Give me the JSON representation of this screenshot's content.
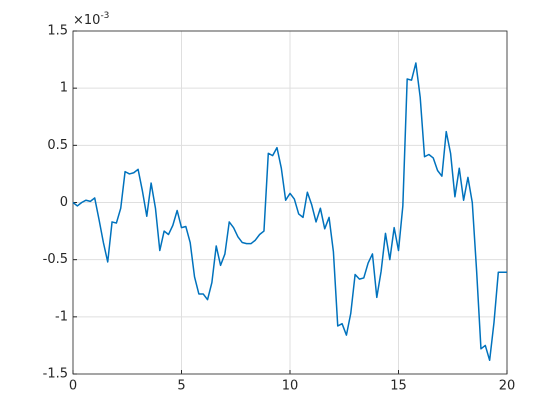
{
  "chart_data": {
    "type": "line",
    "y_exponent": {
      "base": "×10",
      "power": "-3"
    },
    "x": [
      0,
      0.2,
      0.4,
      0.6,
      0.8,
      1,
      1.2,
      1.4,
      1.6,
      1.8,
      2,
      2.2,
      2.4,
      2.6,
      2.8,
      3,
      3.2,
      3.4,
      3.6,
      3.8,
      4,
      4.2,
      4.4,
      4.6,
      4.8,
      5,
      5.2,
      5.4,
      5.6,
      5.8,
      6,
      6.2,
      6.4,
      6.6,
      6.8,
      7,
      7.2,
      7.4,
      7.6,
      7.8,
      8,
      8.2,
      8.4,
      8.6,
      8.8,
      9,
      9.2,
      9.4,
      9.6,
      9.8,
      10,
      10.2,
      10.4,
      10.6,
      10.8,
      11,
      11.2,
      11.4,
      11.6,
      11.8,
      12,
      12.2,
      12.4,
      12.6,
      12.8,
      13,
      13.2,
      13.4,
      13.6,
      13.8,
      14,
      14.2,
      14.4,
      14.6,
      14.8,
      15,
      15.2,
      15.4,
      15.6,
      15.8,
      16,
      16.2,
      16.4,
      16.6,
      16.8,
      17,
      17.2,
      17.4,
      17.6,
      17.8,
      18,
      18.2,
      18.4,
      18.6,
      18.8,
      19,
      19.2,
      19.4,
      19.6,
      19.8,
      20
    ],
    "series": [
      {
        "color": "#0072bd",
        "values": [
          0,
          -0.03,
          0,
          0.02,
          0.01,
          0.04,
          -0.15,
          -0.35,
          -0.52,
          -0.17,
          -0.18,
          -0.05,
          0.27,
          0.25,
          0.26,
          0.29,
          0.1,
          -0.12,
          0.17,
          -0.05,
          -0.42,
          -0.25,
          -0.28,
          -0.2,
          -0.07,
          -0.22,
          -0.21,
          -0.35,
          -0.65,
          -0.8,
          -0.8,
          -0.85,
          -0.7,
          -0.38,
          -0.55,
          -0.45,
          -0.17,
          -0.22,
          -0.3,
          -0.35,
          -0.36,
          -0.36,
          -0.33,
          -0.28,
          -0.25,
          0.43,
          0.41,
          0.48,
          0.3,
          0.02,
          0.08,
          0.03,
          -0.1,
          -0.13,
          0.09,
          -0.02,
          -0.17,
          -0.05,
          -0.23,
          -0.13,
          -0.43,
          -1.08,
          -1.06,
          -1.16,
          -0.97,
          -0.63,
          -0.67,
          -0.66,
          -0.53,
          -0.45,
          -0.83,
          -0.6,
          -0.27,
          -0.5,
          -0.22,
          -0.42,
          -0.03,
          1.08,
          1.07,
          1.22,
          0.92,
          0.4,
          0.42,
          0.39,
          0.28,
          0.23,
          0.62,
          0.43,
          0.05,
          0.3,
          0.02,
          0.22,
          0,
          -0.6,
          -1.28,
          -1.25,
          -1.38,
          -1.05,
          -0.61,
          -0.61,
          -0.61
        ]
      }
    ],
    "xlim": [
      0,
      20
    ],
    "xticks": [
      0,
      5,
      10,
      15,
      20
    ],
    "ylim": [
      -1.5,
      1.5
    ],
    "yticks": [
      -1.5,
      -1,
      -0.5,
      0,
      0.5,
      1,
      1.5
    ],
    "grid": true
  }
}
